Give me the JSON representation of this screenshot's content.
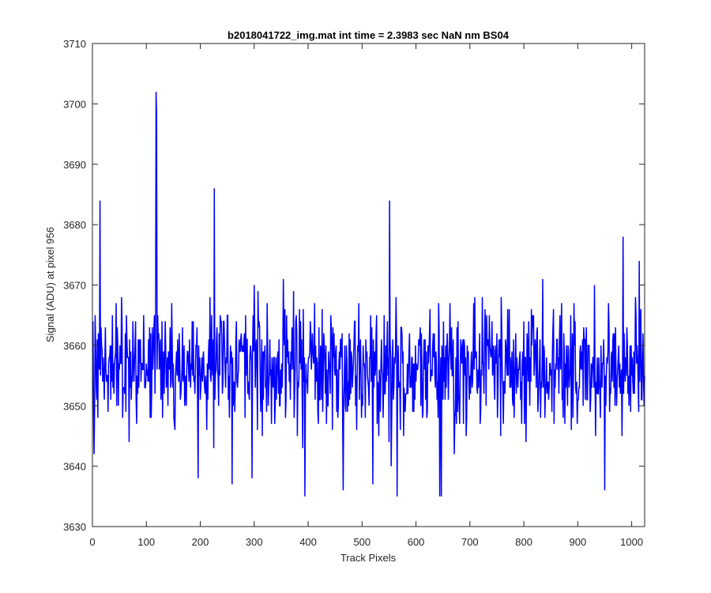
{
  "chart_data": {
    "type": "line",
    "title": "b2018041722_img.mat int time = 2.3983 sec  NaN nm BS04",
    "xlabel": "Track Pixels",
    "ylabel": "Signal (ADU) at pixel 956",
    "xlim": [
      0,
      1024
    ],
    "ylim": [
      3630,
      3710
    ],
    "xticks": [
      0,
      100,
      200,
      300,
      400,
      500,
      600,
      700,
      800,
      900,
      1000
    ],
    "yticks": [
      3630,
      3640,
      3650,
      3660,
      3670,
      3680,
      3690,
      3700,
      3710
    ],
    "grid": false,
    "legend": "none",
    "series_color": "#0000ff",
    "noise": {
      "n_points": 1024,
      "mean": 3656,
      "typical_min": 3641,
      "typical_max": 3672
    },
    "spikes": [
      {
        "x": 3,
        "y": 3642
      },
      {
        "x": 14,
        "y": 3684
      },
      {
        "x": 68,
        "y": 3644
      },
      {
        "x": 118,
        "y": 3702
      },
      {
        "x": 119,
        "y": 3698
      },
      {
        "x": 196,
        "y": 3638
      },
      {
        "x": 226,
        "y": 3686
      },
      {
        "x": 259,
        "y": 3637
      },
      {
        "x": 394,
        "y": 3635
      },
      {
        "x": 465,
        "y": 3636
      },
      {
        "x": 520,
        "y": 3637
      },
      {
        "x": 551,
        "y": 3684
      },
      {
        "x": 565,
        "y": 3635
      },
      {
        "x": 644,
        "y": 3635
      },
      {
        "x": 647,
        "y": 3635
      },
      {
        "x": 950,
        "y": 3636
      },
      {
        "x": 984,
        "y": 3678
      },
      {
        "x": 1014,
        "y": 3674
      }
    ]
  }
}
